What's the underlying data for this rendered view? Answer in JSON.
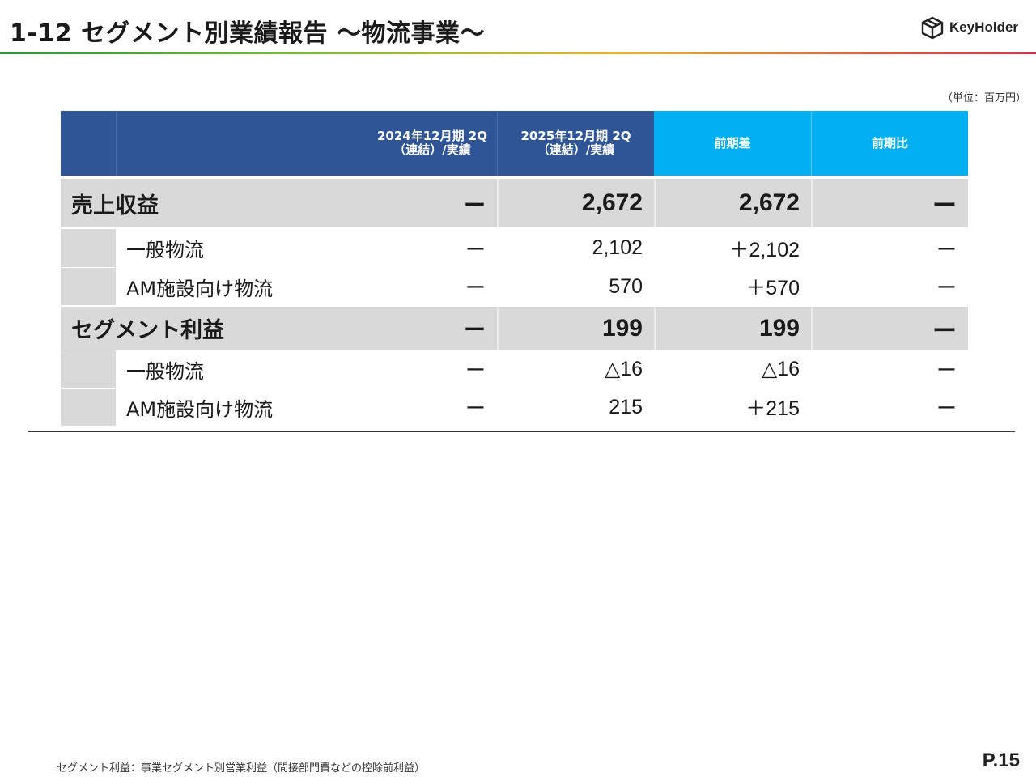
{
  "header": {
    "title": "1-12  セグメント別業績報告 ～物流事業～",
    "logo_text": "KeyHolder",
    "unit_note": "（単位：百万円）"
  },
  "table": {
    "columns": [
      {
        "line1": "2024年12月期 2Q",
        "line2": "（連結）/実績"
      },
      {
        "line1": "2025年12月期 2Q",
        "line2": "（連結）/実績"
      },
      {
        "line1": "前期差",
        "line2": ""
      },
      {
        "line1": "前期比",
        "line2": ""
      }
    ],
    "rows": [
      {
        "kind": "main",
        "label": "売上収益",
        "values": [
          "ー",
          "2,672",
          "2,672",
          "ー"
        ]
      },
      {
        "kind": "sub",
        "label": "一般物流",
        "values": [
          "ー",
          "2,102",
          "＋2,102",
          "ー"
        ]
      },
      {
        "kind": "sub",
        "label": "AM施設向け物流",
        "values": [
          "ー",
          "570",
          "＋570",
          "ー"
        ]
      },
      {
        "kind": "main",
        "label": "セグメント利益",
        "values": [
          "ー",
          "199",
          "199",
          "ー"
        ]
      },
      {
        "kind": "sub",
        "label": "一般物流",
        "values": [
          "ー",
          "△16",
          "△16",
          "ー"
        ]
      },
      {
        "kind": "sub",
        "label": "AM施設向け物流",
        "values": [
          "ー",
          "215",
          "＋215",
          "ー"
        ]
      }
    ]
  },
  "footer": {
    "footnote": "セグメント利益：事業セグメント別営業利益（間接部門費などの控除前利益）",
    "page_number": "P.15"
  }
}
